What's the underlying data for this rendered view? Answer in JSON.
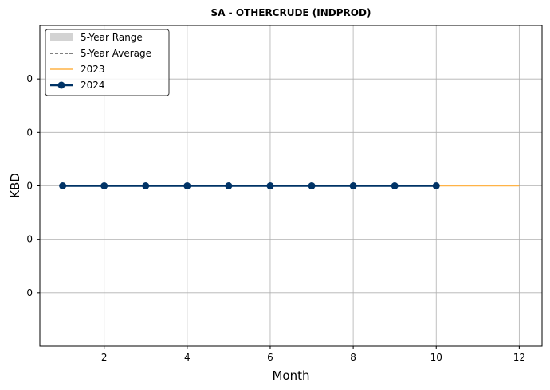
{
  "chart_data": {
    "type": "line",
    "title": "SA - OTHERCRUDE (INDPROD)",
    "xlabel": "Month",
    "ylabel": "KBD",
    "xlim": [
      0.45,
      12.55
    ],
    "ylim": [
      -0.06,
      0.06
    ],
    "x_ticks": [
      2,
      4,
      6,
      8,
      10,
      12
    ],
    "y_ticks": [
      -0.04,
      -0.02,
      0,
      0.02,
      0.04
    ],
    "y_tick_labels": [
      "0",
      "0",
      "0",
      "0",
      "0"
    ],
    "grid": true,
    "legend_position": "top-left",
    "legend": [
      "5-Year Range",
      "5-Year Average",
      "2023",
      "2024"
    ],
    "series": [
      {
        "name": "5-Year Range",
        "kind": "band",
        "color": "#d3d3d3",
        "x": [
          1,
          2,
          3,
          4,
          5,
          6,
          7,
          8,
          9,
          10,
          11,
          12
        ],
        "low": [
          0,
          0,
          0,
          0,
          0,
          0,
          0,
          0,
          0,
          0,
          0,
          0
        ],
        "high": [
          0,
          0,
          0,
          0,
          0,
          0,
          0,
          0,
          0,
          0,
          0,
          0
        ]
      },
      {
        "name": "5-Year Average",
        "kind": "dashed",
        "color": "#000000",
        "x": [
          1,
          2,
          3,
          4,
          5,
          6,
          7,
          8,
          9,
          10,
          11,
          12
        ],
        "y": [
          0,
          0,
          0,
          0,
          0,
          0,
          0,
          0,
          0,
          0,
          0,
          0
        ]
      },
      {
        "name": "2023",
        "kind": "line",
        "color": "#ffb347",
        "x": [
          1,
          2,
          3,
          4,
          5,
          6,
          7,
          8,
          9,
          10,
          11,
          12
        ],
        "y": [
          0,
          0,
          0,
          0,
          0,
          0,
          0,
          0,
          0,
          0,
          0,
          0
        ]
      },
      {
        "name": "2024",
        "kind": "line-marker",
        "color": "#003366",
        "x": [
          1,
          2,
          3,
          4,
          5,
          6,
          7,
          8,
          9,
          10
        ],
        "y": [
          0,
          0,
          0,
          0,
          0,
          0,
          0,
          0,
          0,
          0
        ]
      }
    ]
  }
}
